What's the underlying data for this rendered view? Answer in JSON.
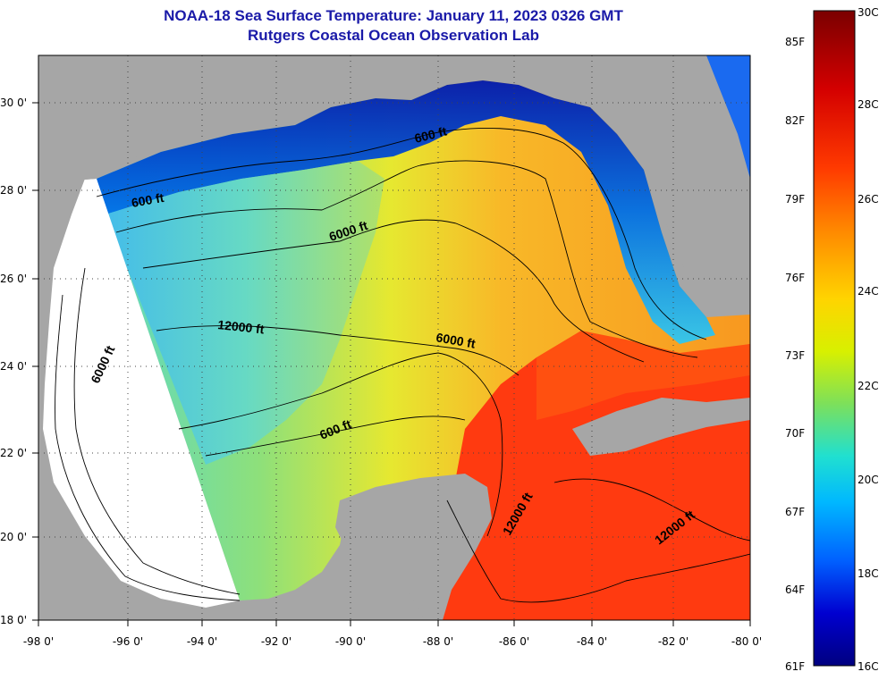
{
  "header": {
    "title": "NOAA-18 Sea Surface Temperature:  January 11, 2023 0326 GMT",
    "subtitle": "Rutgers Coastal Ocean Observation Lab"
  },
  "axes": {
    "lat_labels": [
      "30 0'",
      "28 0'",
      "26 0'",
      "24 0'",
      "22 0'",
      "20 0'",
      "18 0'"
    ],
    "lon_labels": [
      "-98 0'",
      "-96 0'",
      "-94 0'",
      "-92 0'",
      "-90 0'",
      "-88 0'",
      "-86 0'",
      "-84 0'",
      "-82 0'",
      "-80 0'"
    ]
  },
  "contour_labels": {
    "c1": "600 ft",
    "c2": "600 ft",
    "c3": "6000 ft",
    "c4": "12000 ft",
    "c5": "6000 ft",
    "c6": "6000 ft",
    "c7": "600 ft",
    "c8": "12000 ft",
    "c9": "12000 ft"
  },
  "colorbar": {
    "fahrenheit": [
      "85F",
      "82F",
      "79F",
      "76F",
      "73F",
      "70F",
      "67F",
      "64F",
      "61F"
    ],
    "celsius": [
      "30C",
      "28C",
      "26C",
      "24C",
      "22C",
      "20C",
      "18C",
      "16C"
    ],
    "colors": [
      "#7a0000",
      "#d40000",
      "#ff3a00",
      "#ff8c00",
      "#ffd400",
      "#d8f000",
      "#7de05a",
      "#20e0d0",
      "#00b8ff",
      "#0060ff",
      "#0000d0",
      "#000080"
    ]
  },
  "colors": {
    "land": "#a6a6a6",
    "nodata": "#ffffff",
    "title": "#1a1aa8"
  }
}
